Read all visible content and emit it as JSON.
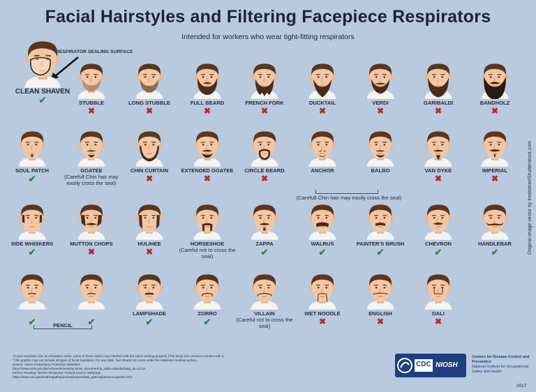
{
  "title": "Facial Hairstyles and Filtering Facepiece Respirators",
  "subtitle": "Intended for workers who wear tight-fitting respirators",
  "seal_label": "RESPIRATOR SEALING SURFACE",
  "colors": {
    "background": "#b9c9de",
    "skin": "#f2c7a3",
    "hair": "#5a3520",
    "beard": "#4a2c19",
    "shirt": "#f4f4f4",
    "ok": "#2a8a3c",
    "bad": "#b8282d",
    "brand": "#1d3f80"
  },
  "styles": [
    {
      "name": "CLEAN SHAVEN",
      "ok": true,
      "beard": "none",
      "note": ""
    },
    {
      "name": "STUBBLE",
      "ok": false,
      "beard": "stubble",
      "note": ""
    },
    {
      "name": "LONG STUBBLE",
      "ok": false,
      "beard": "longstubble",
      "note": ""
    },
    {
      "name": "FULL BEARD",
      "ok": false,
      "beard": "full",
      "note": ""
    },
    {
      "name": "FRENCH FORK",
      "ok": false,
      "beard": "fork",
      "note": ""
    },
    {
      "name": "DUCKTAIL",
      "ok": false,
      "beard": "ducktail",
      "note": ""
    },
    {
      "name": "VERDI",
      "ok": false,
      "beard": "verdi",
      "note": ""
    },
    {
      "name": "GARIBALDI",
      "ok": false,
      "beard": "garibaldi",
      "note": ""
    },
    {
      "name": "BANDHOLZ",
      "ok": false,
      "beard": "bandholz",
      "note": ""
    },
    {
      "name": "SOUL PATCH",
      "ok": true,
      "beard": "soulpatch",
      "note": ""
    },
    {
      "name": "GOATEE",
      "ok": null,
      "beard": "goatee",
      "note": "(Carefull Chin hair may easily cross the seal)"
    },
    {
      "name": "CHIN CURTAIN",
      "ok": false,
      "beard": "chincurtain",
      "note": ""
    },
    {
      "name": "EXTENDED GOATEE",
      "ok": false,
      "beard": "extgoatee",
      "note": ""
    },
    {
      "name": "CIRCLE BEARD",
      "ok": false,
      "beard": "circle",
      "note": ""
    },
    {
      "name": "ANCHOR",
      "ok": null,
      "beard": "anchor",
      "note": ""
    },
    {
      "name": "BALBO",
      "ok": null,
      "beard": "balbo",
      "note": ""
    },
    {
      "name": "VAN DYKE",
      "ok": false,
      "beard": "vandyke",
      "note": ""
    },
    {
      "name": "IMPERIAL",
      "ok": false,
      "beard": "imperial",
      "note": ""
    },
    {
      "name": "SIDE WHISKERS",
      "ok": true,
      "beard": "sidewhiskers",
      "note": ""
    },
    {
      "name": "MUTTON CHOPS",
      "ok": false,
      "beard": "mutton",
      "note": ""
    },
    {
      "name": "HULIHEE",
      "ok": false,
      "beard": "hulihee",
      "note": ""
    },
    {
      "name": "HORSESHOE",
      "ok": null,
      "beard": "horseshoe",
      "note": "(Careful not to cross the seal)"
    },
    {
      "name": "ZAPPA",
      "ok": true,
      "beard": "zappa",
      "note": ""
    },
    {
      "name": "WALRUS",
      "ok": true,
      "beard": "walrus",
      "note": ""
    },
    {
      "name": "PAINTER'S BRUSH",
      "ok": true,
      "beard": "painter",
      "note": ""
    },
    {
      "name": "CHEVRON",
      "ok": true,
      "beard": "chevron",
      "note": ""
    },
    {
      "name": "HANDLEBAR",
      "ok": true,
      "beard": "handlebar",
      "note": ""
    },
    {
      "name": "",
      "ok": true,
      "beard": "pencil",
      "note": ""
    },
    {
      "name": "",
      "ok": true,
      "beard": "pencil2",
      "note": ""
    },
    {
      "name": "LAMPSHADE",
      "ok": true,
      "beard": "lampshade",
      "note": ""
    },
    {
      "name": "ZORRO",
      "ok": true,
      "beard": "zorro",
      "note": ""
    },
    {
      "name": "VILLAIN",
      "ok": null,
      "beard": "villain",
      "note": "(Careful not to cross the seal)"
    },
    {
      "name": "WET NOODLE",
      "ok": false,
      "beard": "wetnoodle",
      "note": ""
    },
    {
      "name": "ENGLISH",
      "ok": false,
      "beard": "english",
      "note": ""
    },
    {
      "name": "DALI",
      "ok": false,
      "beard": "dali",
      "note": ""
    }
  ],
  "groups": {
    "anchor_balbo_note": "(Carefull Chin hair may easily cross the seal)",
    "pencil_label": "PENCIL"
  },
  "credit": "Original image vector by fredrisher/Shutterstock.com",
  "footnotes": [
    "*If your respirator has an exhalation valve, some of these styles may interfere with the valve working properly if the facial hair comes in contact with it.",
    "*This graphic may not include all types of facial hairstyles. For any style, hair should not cross under the respirator sealing surface.",
    "Source: OSHA Respiratory Protection Standard",
    "https://www.osha.gov/pls/oshaweb/owadisp.show_document?p_table=standards&p_id=12716",
    "Further Reading: NIOSH Respirator Trusted-Source Webpage",
    "https://www.cdc.gov/niosh/npptl/topics/respirators/disp_part/respsource1quest2.html"
  ],
  "logo": {
    "cdc": "CDC",
    "niosh": "NIOSH",
    "org_line1": "Centers for Disease Control and Prevention",
    "org_line2": "National Institute for Occupational Safety and Health"
  },
  "year": "2017"
}
